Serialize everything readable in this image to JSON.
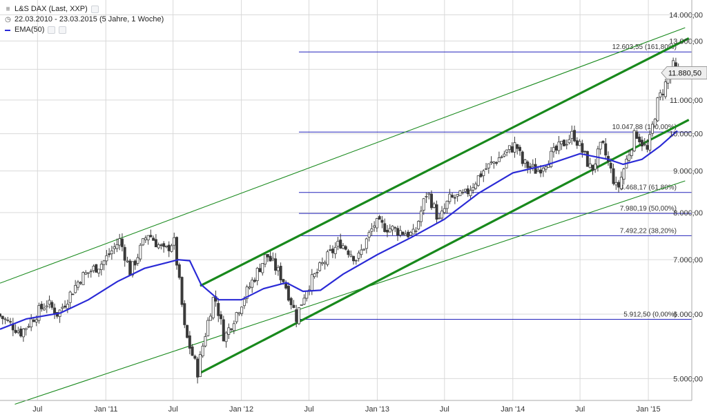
{
  "legend": {
    "instrument": "L&S DAX (Last, XXP)",
    "period": "22.03.2010 - 23.03.2015 (5 Jahre, 1 Woche)",
    "indicator": "EMA(50)"
  },
  "colors": {
    "candle": "#3a3a3a",
    "ema": "#2a2ad6",
    "fib": "#2222bb",
    "channel": "#18891c",
    "grid": "#d9d9d9",
    "price_label_bg": "#eeeeee"
  },
  "chart_data": {
    "type": "candlestick",
    "scale": "log",
    "title": "L&S DAX (Last, XXP)",
    "ylim": [
      4700,
      14600
    ],
    "y_ticks": [
      {
        "value": 5000,
        "label": "5.000,00"
      },
      {
        "value": 6000,
        "label": "6.000,00"
      },
      {
        "value": 7000,
        "label": "7.000,00"
      },
      {
        "value": 8000,
        "label": "8.000,00"
      },
      {
        "value": 9000,
        "label": "9.000,00"
      },
      {
        "value": 10000,
        "label": "10.000,00"
      },
      {
        "value": 11000,
        "label": "11.000,00"
      },
      {
        "value": 12000,
        "label": "12.000,00"
      },
      {
        "value": 13000,
        "label": "13.000,00"
      },
      {
        "value": 14000,
        "label": "14.000,00"
      }
    ],
    "x_ticks": [
      {
        "date": "2010-07-01",
        "label": "Jul"
      },
      {
        "date": "2011-01-01",
        "label": "Jan '11"
      },
      {
        "date": "2011-07-01",
        "label": "Jul"
      },
      {
        "date": "2012-01-01",
        "label": "Jan '12"
      },
      {
        "date": "2012-07-01",
        "label": "Jul"
      },
      {
        "date": "2013-01-01",
        "label": "Jan '13"
      },
      {
        "date": "2013-07-01",
        "label": "Jul"
      },
      {
        "date": "2014-01-01",
        "label": "Jan '14"
      },
      {
        "date": "2014-07-01",
        "label": "Jul"
      },
      {
        "date": "2015-01-01",
        "label": "Jan '15"
      }
    ],
    "last_price": {
      "value": 11880.5,
      "label": "11.880,50"
    },
    "price_path": [
      [
        "2010-03-22",
        6000
      ],
      [
        "2010-05-25",
        5700
      ],
      [
        "2010-08-01",
        6200
      ],
      [
        "2010-09-01",
        6000
      ],
      [
        "2010-11-01",
        6650
      ],
      [
        "2011-01-01",
        6950
      ],
      [
        "2011-02-15",
        7400
      ],
      [
        "2011-03-15",
        6750
      ],
      [
        "2011-05-01",
        7550
      ],
      [
        "2011-06-15",
        7150
      ],
      [
        "2011-07-10",
        7400
      ],
      [
        "2011-08-09",
        5700
      ],
      [
        "2011-09-12",
        5100
      ],
      [
        "2011-10-27",
        6350
      ],
      [
        "2011-11-23",
        5600
      ],
      [
        "2012-01-01",
        6100
      ],
      [
        "2012-03-16",
        7100
      ],
      [
        "2012-05-01",
        6600
      ],
      [
        "2012-06-04",
        5950
      ],
      [
        "2012-07-01",
        6450
      ],
      [
        "2012-09-01",
        7100
      ],
      [
        "2012-10-01",
        7350
      ],
      [
        "2012-11-16",
        7000
      ],
      [
        "2013-01-01",
        7750
      ],
      [
        "2013-04-18",
        7500
      ],
      [
        "2013-05-22",
        8500
      ],
      [
        "2013-06-24",
        7800
      ],
      [
        "2013-07-20",
        8300
      ],
      [
        "2013-09-01",
        8400
      ],
      [
        "2013-10-20",
        9000
      ],
      [
        "2014-01-17",
        9700
      ],
      [
        "2014-02-03",
        9200
      ],
      [
        "2014-03-14",
        9000
      ],
      [
        "2014-06-20",
        10000
      ],
      [
        "2014-08-08",
        9000
      ],
      [
        "2014-09-05",
        9700
      ],
      [
        "2014-10-16",
        8500
      ],
      [
        "2014-12-05",
        10050
      ],
      [
        "2015-01-06",
        9500
      ],
      [
        "2015-02-01",
        10900
      ],
      [
        "2015-03-16",
        12100
      ],
      [
        "2015-03-23",
        11880
      ]
    ],
    "ema_path": [
      [
        "2010-03-22",
        5750
      ],
      [
        "2010-06-01",
        5920
      ],
      [
        "2010-09-01",
        6020
      ],
      [
        "2010-11-15",
        6250
      ],
      [
        "2011-02-01",
        6580
      ],
      [
        "2011-04-15",
        6830
      ],
      [
        "2011-07-15",
        7000
      ],
      [
        "2011-08-15",
        6980
      ],
      [
        "2011-09-15",
        6520
      ],
      [
        "2011-11-01",
        6250
      ],
      [
        "2012-01-01",
        6250
      ],
      [
        "2012-03-01",
        6450
      ],
      [
        "2012-05-01",
        6560
      ],
      [
        "2012-06-15",
        6400
      ],
      [
        "2012-08-01",
        6420
      ],
      [
        "2012-10-01",
        6720
      ],
      [
        "2013-01-01",
        7100
      ],
      [
        "2013-04-01",
        7450
      ],
      [
        "2013-07-01",
        7850
      ],
      [
        "2013-10-01",
        8450
      ],
      [
        "2014-01-01",
        8950
      ],
      [
        "2014-04-01",
        9150
      ],
      [
        "2014-07-01",
        9450
      ],
      [
        "2014-09-15",
        9300
      ],
      [
        "2014-10-25",
        9170
      ],
      [
        "2014-12-15",
        9300
      ],
      [
        "2015-02-01",
        9650
      ],
      [
        "2015-03-20",
        10080
      ]
    ],
    "fibonacci_levels": [
      {
        "value": 12603.55,
        "label": "12.603,55 (161,80%)"
      },
      {
        "value": 10047.88,
        "label": "10.047,88 (100,00%)"
      },
      {
        "value": 8468.17,
        "label": "8.468,17 (61,80%)"
      },
      {
        "value": 7980.19,
        "label": "7.980,19 (50,00%)"
      },
      {
        "value": 7492.22,
        "label": "7.492,22 (38,20%)"
      },
      {
        "value": 5912.5,
        "label": "5.912,50 (0,00%)"
      }
    ],
    "fibonacci_start": "2012-06-04",
    "channel_lines": [
      {
        "style": "bold",
        "from": [
          "2011-09-12",
          6500
        ],
        "to": [
          "2015-04-20",
          13100
        ]
      },
      {
        "style": "bold",
        "from": [
          "2011-09-12",
          5080
        ],
        "to": [
          "2015-04-20",
          10400
        ]
      },
      {
        "style": "thin",
        "from": [
          "2010-03-22",
          6550
        ],
        "to": [
          "2015-04-10",
          13500
        ]
      },
      {
        "style": "thin",
        "from": [
          "2010-05-01",
          4650
        ],
        "to": [
          "2015-04-10",
          8750
        ]
      }
    ]
  }
}
